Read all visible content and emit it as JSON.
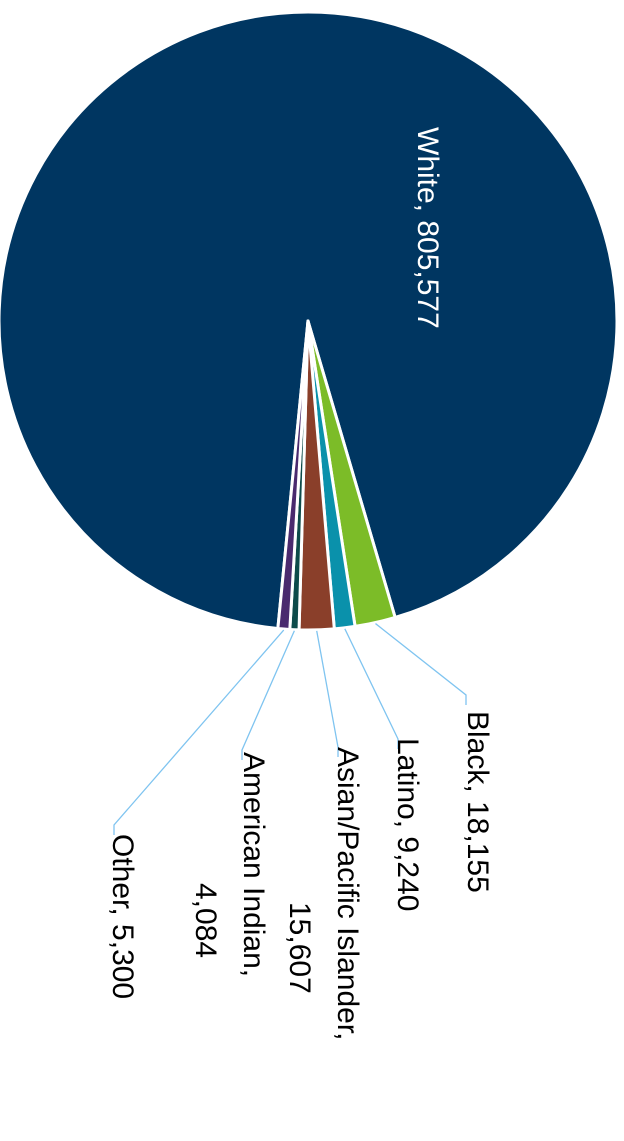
{
  "chart_data": {
    "type": "pie",
    "orientation": "rotated-90-clockwise",
    "slices": [
      {
        "name": "White",
        "value": 805577,
        "display": "805,577",
        "color": "#003661"
      },
      {
        "name": "Black",
        "value": 18155,
        "display": "18,155",
        "color": "#7cbc28"
      },
      {
        "name": "Latino",
        "value": 9240,
        "display": "9,240",
        "color": "#0a91ab"
      },
      {
        "name": "Asian/Pacific Islander",
        "value": 15607,
        "display": "15,607",
        "color": "#8a3f2a"
      },
      {
        "name": "American Indian",
        "value": 4084,
        "display": "4,084",
        "color": "#0d4b4a"
      },
      {
        "name": "Other",
        "value": 5300,
        "display": "5,300",
        "color": "#4a2a6e"
      }
    ],
    "labels": {
      "white": "White,  805,577",
      "black": "Black,  18,155",
      "latino": "Latino,  9,240",
      "asian_line1": "Asian/Pacific Islander,",
      "asian_line2": "15,607",
      "american_indian_line1": "American Indian,",
      "american_indian_line2": "4,084",
      "other": "Other,  5,300"
    },
    "leader_line_color": "#7fc4f0"
  }
}
